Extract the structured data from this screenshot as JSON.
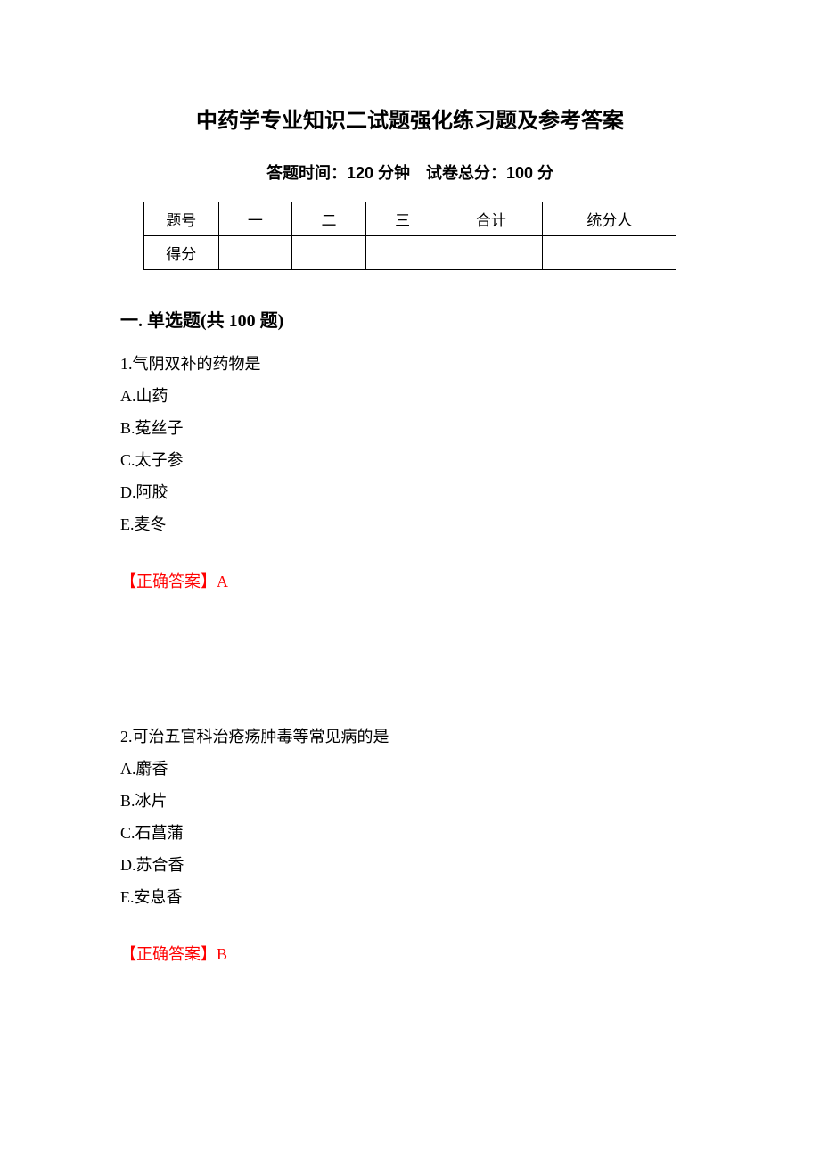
{
  "title": "中药学专业知识二试题强化练习题及参考答案",
  "subtitle": "答题时间：120 分钟 试卷总分：100 分",
  "table": {
    "header": [
      "题号",
      "一",
      "二",
      "三",
      "合计",
      "统分人"
    ],
    "row2_label": "得分"
  },
  "section": {
    "heading": "一. 单选题(共 100 题)"
  },
  "questions": [
    {
      "number": "1",
      "text": "气阴双补的药物是",
      "options": [
        {
          "label": "A",
          "text": "山药"
        },
        {
          "label": "B",
          "text": "菟丝子"
        },
        {
          "label": "C",
          "text": "太子参"
        },
        {
          "label": "D",
          "text": "阿胶"
        },
        {
          "label": "E",
          "text": "麦冬"
        }
      ],
      "answer_prefix": "【正确答案】",
      "answer": "A"
    },
    {
      "number": "2",
      "text": "可治五官科治疮疡肿毒等常见病的是",
      "options": [
        {
          "label": "A",
          "text": "麝香"
        },
        {
          "label": "B",
          "text": "冰片"
        },
        {
          "label": "C",
          "text": "石菖蒲"
        },
        {
          "label": "D",
          "text": "苏合香"
        },
        {
          "label": "E",
          "text": "安息香"
        }
      ],
      "answer_prefix": "【正确答案】",
      "answer": "B"
    }
  ]
}
